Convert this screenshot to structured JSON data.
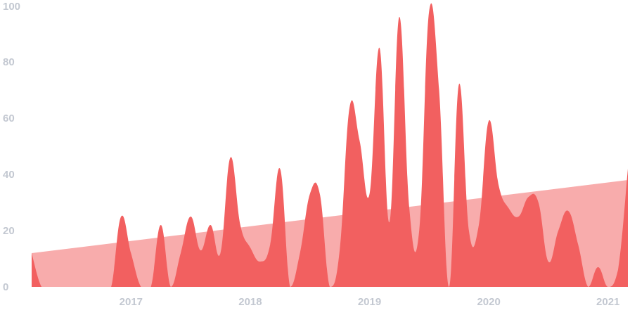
{
  "chart_data": {
    "type": "area",
    "title": "",
    "xlabel": "",
    "ylabel": "",
    "ylim": [
      0,
      100
    ],
    "y_ticks": [
      "0",
      "20",
      "40",
      "60",
      "80",
      "100"
    ],
    "x_ticks": [
      "2017",
      "2018",
      "2019",
      "2020",
      "2021"
    ],
    "x_range": [
      "2016-03",
      "2021-03"
    ],
    "grid": false,
    "legend": "none",
    "colors": {
      "series": "#f26060",
      "trend": "#f8acac",
      "tick_text": "#c3c8d1"
    },
    "series": [
      {
        "x": [
          "2016-03",
          "2016-04",
          "2016-05",
          "2016-06",
          "2016-07",
          "2016-08",
          "2016-09",
          "2016-10",
          "2016-11",
          "2016-12",
          "2017-01",
          "2017-02",
          "2017-03",
          "2017-04",
          "2017-05",
          "2017-06",
          "2017-07",
          "2017-08",
          "2017-09",
          "2017-10",
          "2017-11",
          "2017-12",
          "2018-01",
          "2018-02",
          "2018-03",
          "2018-04",
          "2018-05",
          "2018-06",
          "2018-07",
          "2018-08",
          "2018-09",
          "2018-10",
          "2018-11",
          "2018-12",
          "2019-01",
          "2019-02",
          "2019-03",
          "2019-04",
          "2019-05",
          "2019-06",
          "2019-07",
          "2019-08",
          "2019-09",
          "2019-10",
          "2019-11",
          "2019-12",
          "2020-01",
          "2020-02",
          "2020-03",
          "2020-04",
          "2020-05",
          "2020-06",
          "2020-07",
          "2020-08",
          "2020-09",
          "2020-10",
          "2020-11",
          "2020-12",
          "2021-01",
          "2021-02",
          "2021-03"
        ],
        "values": [
          12,
          0,
          0,
          0,
          0,
          0,
          0,
          0,
          0,
          25,
          12,
          0,
          0,
          22,
          0,
          12,
          25,
          13,
          22,
          12,
          46,
          22,
          14,
          9,
          15,
          42,
          0,
          12,
          33,
          33,
          0,
          13,
          64,
          52,
          33,
          85,
          23,
          96,
          28,
          20,
          98,
          70,
          0,
          72,
          20,
          22,
          59,
          36,
          28,
          25,
          32,
          30,
          9,
          20,
          27,
          15,
          0,
          7,
          0,
          6,
          42
        ]
      },
      {
        "x": [
          "2016-03",
          "2021-03"
        ],
        "values": [
          12,
          38
        ]
      }
    ]
  }
}
